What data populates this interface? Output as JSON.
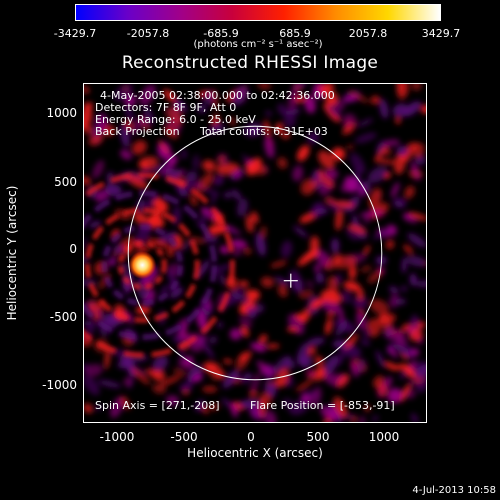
{
  "colorbar": {
    "labels": [
      "-3429.7",
      "-2057.8",
      "-685.9",
      "685.9",
      "2057.8",
      "3429.7"
    ],
    "units": "(photons cm⁻² s⁻¹ asec⁻²)",
    "colors": [
      "#0000ff",
      "#6a00c8",
      "#a0008a",
      "#c8003c",
      "#ff2000",
      "#ff8c00",
      "#ffd700",
      "#ffffff"
    ]
  },
  "title": "Reconstructed RHESSI Image",
  "info": {
    "time": "4-May-2005 02:38:00.000 to 02:42:36.000",
    "detectors": "Detectors: 7F 8F 9F, Att 0",
    "energy": "Energy Range: 6.0 - 25.0 keV",
    "method": "Back Projection",
    "counts": "Total counts: 6.31E+03",
    "spin_axis": "Spin Axis = [271,-208]",
    "flare_position": "Flare Position = [-853,-91]"
  },
  "axes": {
    "xlabel": "Heliocentric X (arcsec)",
    "ylabel": "Heliocentric Y (arcsec)",
    "xticks": [
      "-1000",
      "-500",
      "0",
      "500",
      "1000"
    ],
    "yticks": [
      "1000",
      "500",
      "0",
      "-500",
      "-1000"
    ]
  },
  "map": {
    "x_range": [
      -1295,
      1295
    ],
    "y_range": [
      -1270,
      1270
    ],
    "solar_disk_radius_arcsec": 960,
    "spin_axis": [
      271,
      -208
    ],
    "flare_position": [
      -853,
      -91
    ],
    "colors": {
      "background": "#000000",
      "noise_dark": "#5a0a78",
      "noise_mid": "#a0008a",
      "noise_bright": "#ff2020",
      "source": "#ffffff",
      "disk_outline": "#ffffff"
    }
  },
  "footer": {
    "timestamp": "4-Jul-2013 10:58"
  }
}
